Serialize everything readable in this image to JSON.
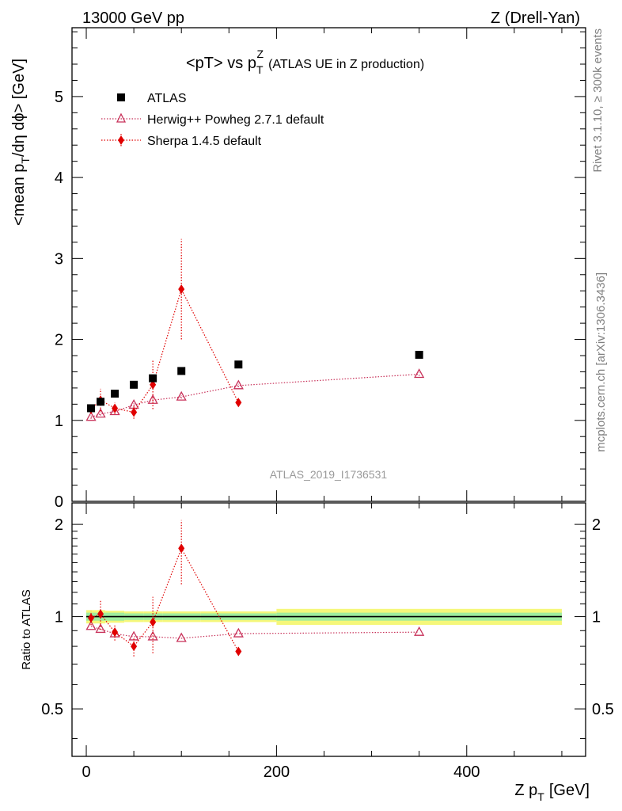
{
  "header": {
    "energy": "13000 GeV pp",
    "process": "Z (Drell-Yan)"
  },
  "side_labels": {
    "rivet": "Rivet 3.1.10, ≥ 300k events",
    "mcplots": "mcplots.cern.ch [arXiv:1306.3436]"
  },
  "chart_data": {
    "type": "scatter",
    "title": "<pT> vs p_T^Z (ATLAS UE in Z production)",
    "title_main": "<pT> vs p",
    "title_sub": "T",
    "title_sup": "Z",
    "title_note": "(ATLAS UE in Z production)",
    "watermark": "ATLAS_2019_I1736531",
    "xlabel": "Z p_T [GeV]",
    "xlabel_main": "Z p",
    "xlabel_sub": "T",
    "xlabel_unit": "[GeV]",
    "ylabel": "<mean p_T/dη dϕ> [GeV]",
    "ylabel_pre": "<mean p",
    "ylabel_sub": "T",
    "ylabel_post": "/dη dϕ> [GeV]",
    "ratio_ylabel": "Ratio to ATLAS",
    "xlim": [
      -15,
      525
    ],
    "ylim": [
      0,
      5.85
    ],
    "ratio_ylim": [
      0.35,
      2.35
    ],
    "ratio_scale": "log",
    "x_ticks": [
      0,
      200,
      400
    ],
    "y_ticks": [
      0,
      1,
      2,
      3,
      4,
      5
    ],
    "ratio_ticks": [
      0.5,
      1,
      2
    ],
    "legend_position": "top-left",
    "series": [
      {
        "name": "ATLAS",
        "marker": "square",
        "color": "#000000",
        "x": [
          5,
          15,
          30,
          50,
          70,
          100,
          160,
          350
        ],
        "y": [
          1.15,
          1.23,
          1.33,
          1.44,
          1.52,
          1.61,
          1.69,
          1.81
        ],
        "x_edges": [
          0,
          10,
          20,
          40,
          60,
          80,
          120,
          200,
          500
        ],
        "band_inner": [
          0.03,
          0.03,
          0.03,
          0.025,
          0.025,
          0.025,
          0.025,
          0.03
        ],
        "band_outer": [
          0.05,
          0.05,
          0.045,
          0.04,
          0.04,
          0.04,
          0.04,
          0.06
        ]
      },
      {
        "name": "Herwig++ Powheg 2.7.1 default",
        "marker": "open-triangle",
        "color": "#c8325a",
        "x": [
          5,
          15,
          30,
          50,
          70,
          100,
          160,
          350
        ],
        "y": [
          1.04,
          1.08,
          1.11,
          1.19,
          1.25,
          1.29,
          1.43,
          1.57
        ],
        "ratio": [
          0.93,
          0.91,
          0.88,
          0.86,
          0.86,
          0.85,
          0.88,
          0.89
        ],
        "yerr": [
          0.02,
          0.02,
          0.02,
          0.02,
          0.02,
          0.02,
          0.02,
          0.02
        ]
      },
      {
        "name": "Sherpa 1.4.5 default",
        "marker": "diamond",
        "color": "#e00000",
        "x": [
          5,
          15,
          30,
          50,
          70,
          100,
          160
        ],
        "y": [
          1.14,
          1.25,
          1.15,
          1.1,
          1.44,
          2.62,
          1.22
        ],
        "ratio": [
          0.99,
          1.02,
          0.89,
          0.8,
          0.96,
          1.67,
          0.77
        ],
        "yerr": [
          0.06,
          0.14,
          0.07,
          0.08,
          0.3,
          0.62,
          0.03
        ]
      }
    ]
  }
}
